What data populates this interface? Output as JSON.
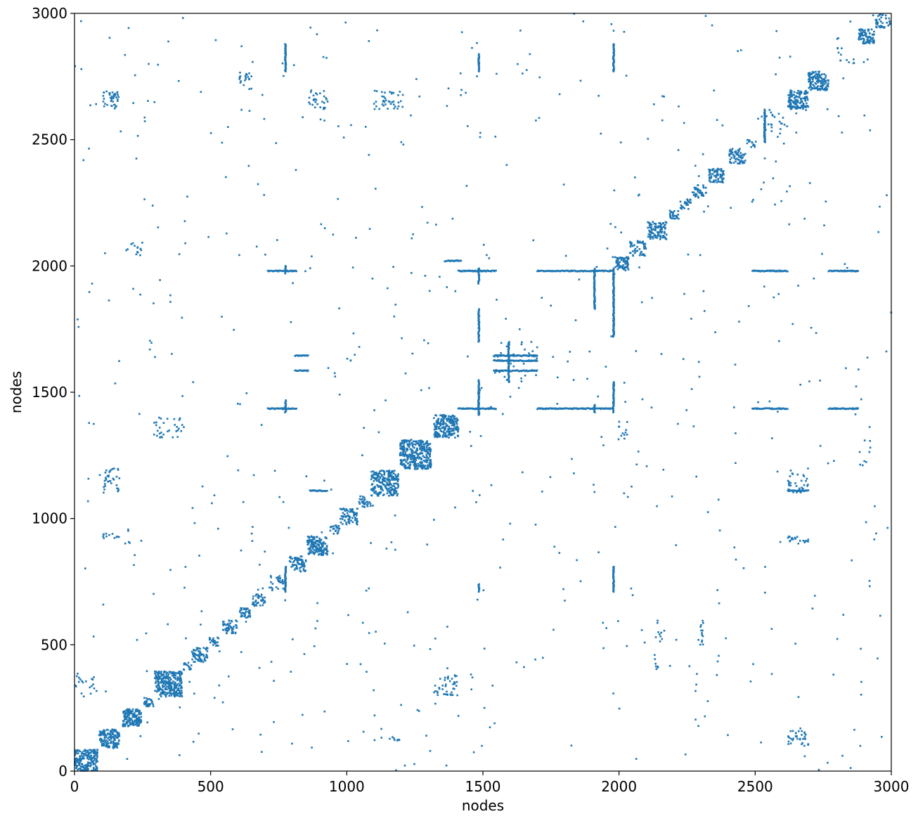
{
  "chart_data": {
    "type": "scatter",
    "title": "",
    "xlabel": "nodes",
    "ylabel": "nodes",
    "xlim": [
      0,
      3000
    ],
    "ylim": [
      0,
      3000
    ],
    "grid": false,
    "marker_color": "#1f77b4",
    "x_ticks": [
      0,
      500,
      1000,
      1500,
      2000,
      2500,
      3000
    ],
    "y_ticks": [
      0,
      500,
      1000,
      1500,
      2000,
      2500,
      3000
    ],
    "x_tick_labels": [
      "0",
      "500",
      "1000",
      "1500",
      "2000",
      "2500",
      "3000"
    ],
    "y_tick_labels": [
      "0",
      "500",
      "1000",
      "1500",
      "2000",
      "2500",
      "3000"
    ],
    "diagonal_blocks": [
      {
        "start": 0,
        "end": 85,
        "density": 0.5
      },
      {
        "start": 90,
        "end": 165,
        "density": 0.55
      },
      {
        "start": 175,
        "end": 245,
        "density": 0.6
      },
      {
        "start": 250,
        "end": 290,
        "density": 0.4
      },
      {
        "start": 295,
        "end": 395,
        "density": 0.55
      },
      {
        "start": 400,
        "end": 430,
        "density": 0.4
      },
      {
        "start": 430,
        "end": 490,
        "density": 0.35
      },
      {
        "start": 495,
        "end": 530,
        "density": 0.4
      },
      {
        "start": 545,
        "end": 600,
        "density": 0.35
      },
      {
        "start": 605,
        "end": 645,
        "density": 0.5
      },
      {
        "start": 650,
        "end": 700,
        "density": 0.3
      },
      {
        "start": 715,
        "end": 775,
        "density": 0.15
      },
      {
        "start": 790,
        "end": 850,
        "density": 0.35
      },
      {
        "start": 855,
        "end": 930,
        "density": 0.5
      },
      {
        "start": 935,
        "end": 975,
        "density": 0.3
      },
      {
        "start": 975,
        "end": 1040,
        "density": 0.35
      },
      {
        "start": 1045,
        "end": 1090,
        "density": 0.3
      },
      {
        "start": 1090,
        "end": 1190,
        "density": 0.45
      },
      {
        "start": 1195,
        "end": 1310,
        "density": 0.5
      },
      {
        "start": 1320,
        "end": 1410,
        "density": 0.55
      },
      {
        "start": 1540,
        "end": 1700,
        "density": 0.02
      },
      {
        "start": 1985,
        "end": 2035,
        "density": 0.6
      },
      {
        "start": 2040,
        "end": 2100,
        "density": 0.3
      },
      {
        "start": 2105,
        "end": 2175,
        "density": 0.4
      },
      {
        "start": 2180,
        "end": 2220,
        "density": 0.35
      },
      {
        "start": 2225,
        "end": 2265,
        "density": 0.35
      },
      {
        "start": 2270,
        "end": 2320,
        "density": 0.35
      },
      {
        "start": 2330,
        "end": 2385,
        "density": 0.45
      },
      {
        "start": 2405,
        "end": 2465,
        "density": 0.35
      },
      {
        "start": 2470,
        "end": 2500,
        "density": 0.25
      },
      {
        "start": 2510,
        "end": 2620,
        "density": 0.04
      },
      {
        "start": 2620,
        "end": 2695,
        "density": 0.55
      },
      {
        "start": 2695,
        "end": 2770,
        "density": 0.45
      },
      {
        "start": 2800,
        "end": 2870,
        "density": 0.05
      },
      {
        "start": 2880,
        "end": 2940,
        "density": 0.45
      },
      {
        "start": 2940,
        "end": 3000,
        "density": 0.2
      }
    ],
    "horizontal_lines": [
      {
        "y": 1980,
        "x_ranges": [
          [
            710,
            815
          ],
          [
            1410,
            1550
          ],
          [
            1700,
            1830
          ],
          [
            1830,
            1910
          ],
          [
            1910,
            1980
          ],
          [
            2490,
            2620
          ],
          [
            2770,
            2880
          ]
        ]
      },
      {
        "y": 1435,
        "x_ranges": [
          [
            710,
            815
          ],
          [
            1410,
            1550
          ],
          [
            1700,
            1830
          ],
          [
            1830,
            1910
          ],
          [
            1910,
            1980
          ],
          [
            2490,
            2620
          ],
          [
            2770,
            2880
          ]
        ]
      },
      {
        "y": 1645,
        "x_ranges": [
          [
            1540,
            1700
          ],
          [
            810,
            860
          ]
        ]
      },
      {
        "y": 1625,
        "x_ranges": [
          [
            1540,
            1700
          ]
        ]
      },
      {
        "y": 1585,
        "x_ranges": [
          [
            1540,
            1700
          ],
          [
            810,
            860
          ]
        ]
      },
      {
        "y": 1110,
        "x_ranges": [
          [
            865,
            930
          ],
          [
            2620,
            2695
          ]
        ]
      },
      {
        "y": 2020,
        "x_ranges": [
          [
            1360,
            1420
          ]
        ]
      }
    ],
    "vertical_lines": [
      {
        "x": 775,
        "y_ranges": [
          [
            2770,
            2880
          ],
          [
            710,
            810
          ],
          [
            1420,
            1470
          ],
          [
            1970,
            2000
          ]
        ]
      },
      {
        "x": 1485,
        "y_ranges": [
          [
            1410,
            1550
          ],
          [
            1700,
            1830
          ],
          [
            1930,
            1990
          ],
          [
            2770,
            2840
          ],
          [
            710,
            740
          ]
        ]
      },
      {
        "x": 1595,
        "y_ranges": [
          [
            1540,
            1700
          ]
        ]
      },
      {
        "x": 1910,
        "y_ranges": [
          [
            1830,
            1990
          ],
          [
            1420,
            1450
          ]
        ]
      },
      {
        "x": 1980,
        "y_ranges": [
          [
            1720,
            1990
          ],
          [
            1420,
            1540
          ],
          [
            2770,
            2880
          ],
          [
            710,
            810
          ]
        ]
      },
      {
        "x": 2535,
        "y_ranges": [
          [
            2490,
            2620
          ]
        ]
      }
    ],
    "offdiag_clusters": [
      {
        "x": [
          105,
          165
        ],
        "y": [
          2620,
          2695
        ],
        "count": 40
      },
      {
        "x": [
          105,
          165
        ],
        "y": [
          1100,
          1200
        ],
        "count": 35
      },
      {
        "x": [
          105,
          165
        ],
        "y": [
          920,
          940
        ],
        "count": 12
      },
      {
        "x": [
          1090,
          1210
        ],
        "y": [
          2620,
          2695
        ],
        "count": 40
      },
      {
        "x": [
          860,
          930
        ],
        "y": [
          2620,
          2695
        ],
        "count": 30
      },
      {
        "x": [
          600,
          650
        ],
        "y": [
          2700,
          2770
        ],
        "count": 20
      },
      {
        "x": [
          290,
          400
        ],
        "y": [
          1320,
          1400
        ],
        "count": 30
      },
      {
        "x": [
          1320,
          1410
        ],
        "y": [
          300,
          380
        ],
        "count": 40
      },
      {
        "x": [
          2620,
          2695
        ],
        "y": [
          100,
          160
        ],
        "count": 35
      },
      {
        "x": [
          2620,
          2695
        ],
        "y": [
          900,
          930
        ],
        "count": 20
      },
      {
        "x": [
          2620,
          2695
        ],
        "y": [
          1100,
          1200
        ],
        "count": 30
      },
      {
        "x": [
          0,
          85
        ],
        "y": [
          290,
          390
        ],
        "count": 20
      },
      {
        "x": [
          190,
          250
        ],
        "y": [
          2040,
          2100
        ],
        "count": 14
      },
      {
        "x": [
          1100,
          1200
        ],
        "y": [
          120,
          135
        ],
        "count": 10
      },
      {
        "x": [
          2290,
          2310
        ],
        "y": [
          500,
          600
        ],
        "count": 14
      },
      {
        "x": [
          1990,
          2030
        ],
        "y": [
          1300,
          1400
        ],
        "count": 12
      },
      {
        "x": [
          2130,
          2160
        ],
        "y": [
          400,
          600
        ],
        "count": 16
      },
      {
        "x": [
          2880,
          2930
        ],
        "y": [
          1200,
          1320
        ],
        "count": 8
      }
    ],
    "background_noise_points": 650,
    "random_seed": 42
  }
}
